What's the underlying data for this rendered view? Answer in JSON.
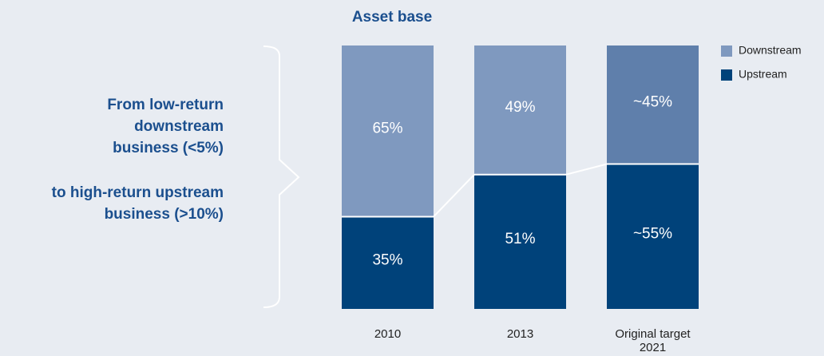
{
  "chart_data": {
    "type": "stacked_bar",
    "title": "Asset base",
    "annotations": [
      [
        "From low-return",
        "downstream",
        "business (<5%)"
      ],
      [
        "to high-return upstream",
        "business (>10%)"
      ]
    ],
    "categories": [
      "2010",
      "2013",
      "Original target 2021"
    ],
    "series": [
      {
        "name": "Upstream",
        "color": "#00427a",
        "values": [
          35,
          51,
          55
        ],
        "value_labels": [
          "35%",
          "51%",
          "~55%"
        ]
      },
      {
        "name": "Downstream",
        "color": "#7f99bf",
        "colors": [
          "#7f99bf",
          "#7f99bf",
          "#5f7fab"
        ],
        "values": [
          65,
          49,
          45
        ],
        "value_labels": [
          "65%",
          "49%",
          "~45%"
        ]
      }
    ],
    "ylim": [
      0,
      100
    ],
    "legend": "top-right"
  }
}
